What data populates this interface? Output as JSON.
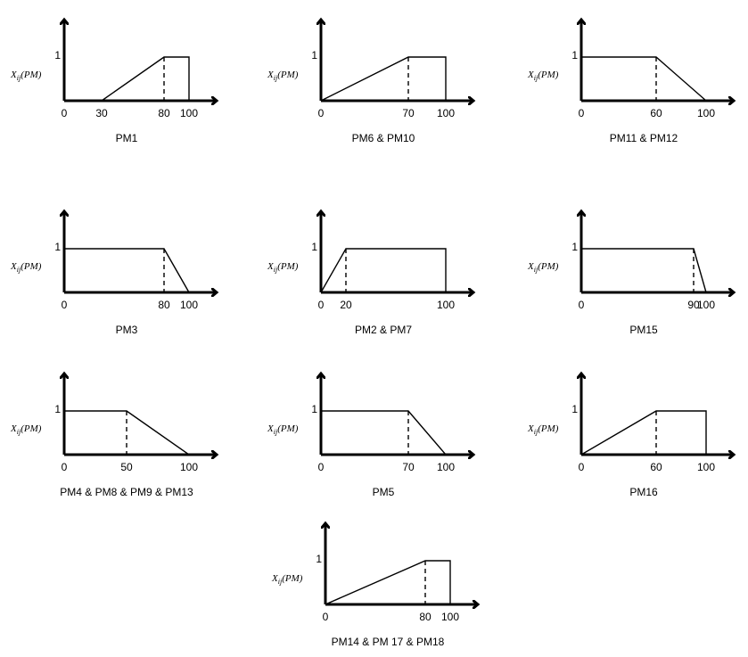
{
  "y_axis_label": {
    "symbol": "X",
    "subscript": "ij",
    "argument": "(PM)"
  },
  "y_max_label": "1",
  "origin_label": "0",
  "charts": [
    {
      "caption": "PM1",
      "x_ticks": [
        "30",
        "80",
        "100"
      ],
      "points": [
        [
          30,
          0
        ],
        [
          80,
          1
        ],
        [
          100,
          1
        ]
      ],
      "dashed_at": 80,
      "drop_at_end": true
    },
    {
      "caption": "PM6 & PM10",
      "x_ticks": [
        "70",
        "100"
      ],
      "points": [
        [
          0,
          0
        ],
        [
          70,
          1
        ],
        [
          100,
          1
        ]
      ],
      "dashed_at": 70,
      "drop_at_end": true
    },
    {
      "caption": "PM11 & PM12",
      "x_ticks": [
        "60",
        "100"
      ],
      "points": [
        [
          0,
          1
        ],
        [
          60,
          1
        ],
        [
          100,
          0
        ]
      ],
      "dashed_at": 60,
      "drop_at_end": false
    },
    {
      "caption": "PM3",
      "x_ticks": [
        "80",
        "100"
      ],
      "points": [
        [
          0,
          1
        ],
        [
          80,
          1
        ],
        [
          100,
          0
        ]
      ],
      "dashed_at": 80,
      "drop_at_end": false
    },
    {
      "caption": "PM2 & PM7",
      "x_ticks": [
        "20",
        "100"
      ],
      "points": [
        [
          0,
          0
        ],
        [
          20,
          1
        ],
        [
          100,
          1
        ]
      ],
      "dashed_at": 20,
      "drop_at_end": true
    },
    {
      "caption": "PM15",
      "x_ticks": [
        "90",
        "100"
      ],
      "points": [
        [
          0,
          1
        ],
        [
          90,
          1
        ],
        [
          100,
          0
        ]
      ],
      "dashed_at": 90,
      "drop_at_end": false
    },
    {
      "caption": "PM4 & PM8 & PM9 & PM13",
      "x_ticks": [
        "50",
        "100"
      ],
      "points": [
        [
          0,
          1
        ],
        [
          50,
          1
        ],
        [
          100,
          0
        ]
      ],
      "dashed_at": 50,
      "drop_at_end": false
    },
    {
      "caption": "PM5",
      "x_ticks": [
        "70",
        "100"
      ],
      "points": [
        [
          0,
          1
        ],
        [
          70,
          1
        ],
        [
          100,
          0
        ]
      ],
      "dashed_at": 70,
      "drop_at_end": false
    },
    {
      "caption": "PM16",
      "x_ticks": [
        "60",
        "100"
      ],
      "points": [
        [
          0,
          0
        ],
        [
          60,
          1
        ],
        [
          100,
          1
        ]
      ],
      "dashed_at": 60,
      "drop_at_end": true
    },
    {
      "caption": "PM14 & PM 17 & PM18",
      "x_ticks": [
        "80",
        "100"
      ],
      "points": [
        [
          0,
          0
        ],
        [
          80,
          1
        ],
        [
          100,
          1
        ]
      ],
      "dashed_at": 80,
      "drop_at_end": true
    }
  ]
}
